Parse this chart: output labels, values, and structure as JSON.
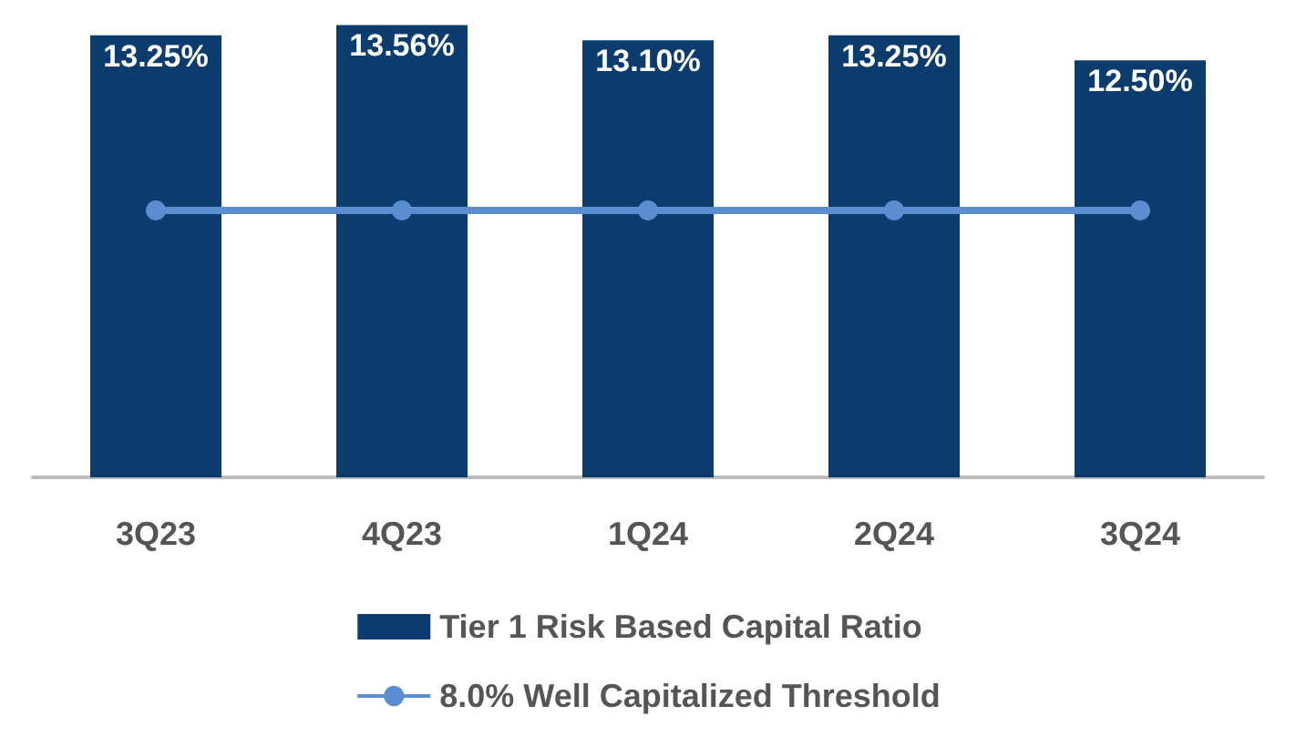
{
  "chart_data": {
    "type": "bar",
    "categories": [
      "3Q23",
      "4Q23",
      "1Q24",
      "2Q24",
      "3Q24"
    ],
    "ylim": [
      0,
      13.6
    ],
    "tick_labels": "x",
    "grid": false,
    "legend": "bottom",
    "series": [
      {
        "name": "Tier 1 Risk Based Capital Ratio",
        "color": "#0c3c6e",
        "values": [
          13.25,
          13.56,
          13.1,
          13.25,
          12.5
        ],
        "value_labels": [
          "13.25%",
          "13.56%",
          "13.10%",
          "13.25%",
          "12.50%"
        ]
      },
      {
        "name": "8.0% Well Capitalized Threshold",
        "type": "line",
        "color": "#5a8ed0",
        "values": [
          8,
          8,
          8,
          8,
          8
        ],
        "marker": "circle",
        "line_style": "solid"
      }
    ]
  }
}
